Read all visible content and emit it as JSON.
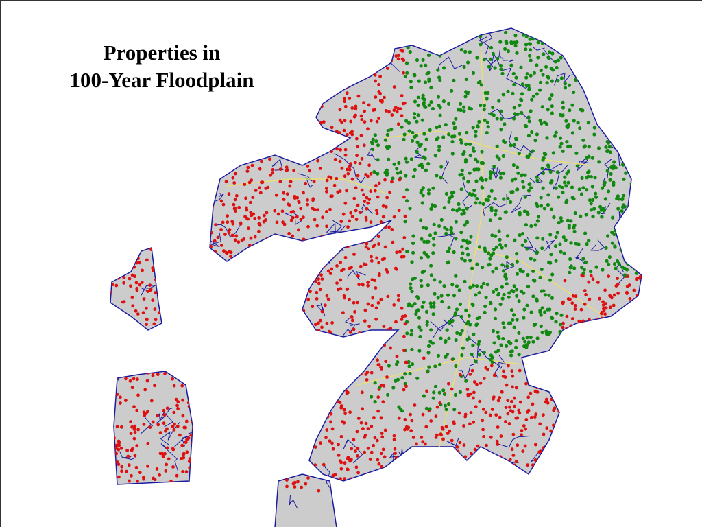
{
  "title": {
    "lines": [
      "Properties in",
      "100-Year Floodplain"
    ]
  }
}
